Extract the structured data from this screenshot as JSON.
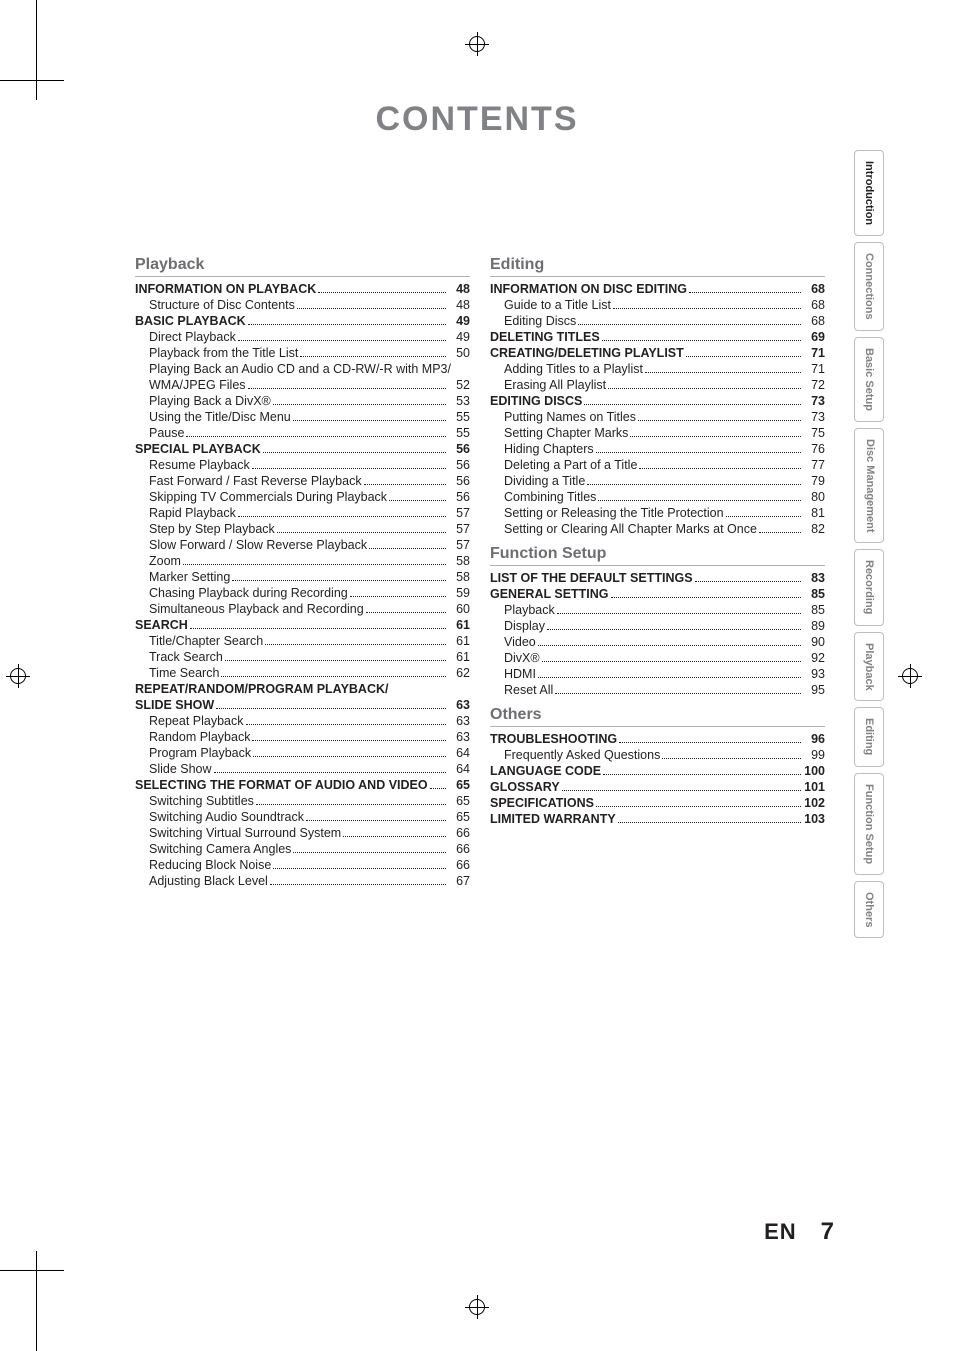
{
  "heading": "CONTENTS",
  "footer": {
    "lang": "EN",
    "page": "7"
  },
  "tabs": [
    {
      "label": "Introduction",
      "active": true
    },
    {
      "label": "Connections"
    },
    {
      "label": "Basic Setup"
    },
    {
      "label": "Disc\nManagement",
      "double": true
    },
    {
      "label": "Recording"
    },
    {
      "label": "Playback"
    },
    {
      "label": "Editing"
    },
    {
      "label": "Function Setup"
    },
    {
      "label": "Others"
    }
  ],
  "colLeft": [
    {
      "type": "section",
      "label": "Playback"
    },
    {
      "type": "h",
      "label": "INFORMATION ON PLAYBACK",
      "page": "48"
    },
    {
      "type": "s",
      "label": "Structure of Disc Contents",
      "page": "48"
    },
    {
      "type": "h",
      "label": "BASIC PLAYBACK",
      "page": "49"
    },
    {
      "type": "s",
      "label": "Direct Playback",
      "page": "49"
    },
    {
      "type": "s",
      "label": "Playback from the Title List",
      "page": "50"
    },
    {
      "type": "s",
      "label": "Playing Back an Audio CD and a CD-RW/-R with MP3/",
      "nopage": true
    },
    {
      "type": "s",
      "label": "WMA/JPEG Files",
      "page": "52"
    },
    {
      "type": "s",
      "label": "Playing Back a DivX®",
      "page": "53"
    },
    {
      "type": "s",
      "label": "Using the Title/Disc Menu",
      "page": "55"
    },
    {
      "type": "s",
      "label": "Pause",
      "page": "55"
    },
    {
      "type": "h",
      "label": "SPECIAL PLAYBACK",
      "page": "56"
    },
    {
      "type": "s",
      "label": "Resume Playback",
      "page": "56"
    },
    {
      "type": "s",
      "label": "Fast Forward / Fast Reverse Playback",
      "page": "56"
    },
    {
      "type": "s",
      "label": "Skipping TV Commercials During Playback",
      "page": "56"
    },
    {
      "type": "s",
      "label": "Rapid Playback",
      "page": "57"
    },
    {
      "type": "s",
      "label": "Step by Step Playback",
      "page": "57"
    },
    {
      "type": "s",
      "label": "Slow Forward / Slow Reverse Playback",
      "page": "57"
    },
    {
      "type": "s",
      "label": "Zoom",
      "page": "58"
    },
    {
      "type": "s",
      "label": "Marker Setting",
      "page": "58"
    },
    {
      "type": "s",
      "label": "Chasing Playback during Recording",
      "page": "59"
    },
    {
      "type": "s",
      "label": "Simultaneous Playback and Recording",
      "page": "60"
    },
    {
      "type": "h",
      "label": "SEARCH",
      "page": "61"
    },
    {
      "type": "s",
      "label": "Title/Chapter Search",
      "page": "61"
    },
    {
      "type": "s",
      "label": "Track Search",
      "page": "61"
    },
    {
      "type": "s",
      "label": "Time Search",
      "page": "62"
    },
    {
      "type": "h",
      "label": "REPEAT/RANDOM/PROGRAM PLAYBACK/",
      "nopage": true
    },
    {
      "type": "h",
      "label": "SLIDE SHOW",
      "page": "63"
    },
    {
      "type": "s",
      "label": "Repeat Playback",
      "page": "63"
    },
    {
      "type": "s",
      "label": "Random Playback",
      "page": "63"
    },
    {
      "type": "s",
      "label": "Program Playback",
      "page": "64"
    },
    {
      "type": "s",
      "label": "Slide Show",
      "page": "64"
    },
    {
      "type": "h",
      "label": "SELECTING THE FORMAT OF AUDIO AND VIDEO",
      "page": "65"
    },
    {
      "type": "s",
      "label": "Switching Subtitles",
      "page": "65"
    },
    {
      "type": "s",
      "label": "Switching Audio Soundtrack",
      "page": "65"
    },
    {
      "type": "s",
      "label": "Switching Virtual Surround System",
      "page": "66"
    },
    {
      "type": "s",
      "label": "Switching Camera Angles",
      "page": "66"
    },
    {
      "type": "s",
      "label": "Reducing Block Noise",
      "page": "66"
    },
    {
      "type": "s",
      "label": "Adjusting Black Level",
      "page": "67"
    }
  ],
  "colRight": [
    {
      "type": "section",
      "label": "Editing"
    },
    {
      "type": "h",
      "label": "INFORMATION ON DISC EDITING",
      "page": "68"
    },
    {
      "type": "s",
      "label": "Guide to a Title List",
      "page": "68"
    },
    {
      "type": "s",
      "label": "Editing Discs",
      "page": "68"
    },
    {
      "type": "h",
      "label": "DELETING TITLES",
      "page": "69"
    },
    {
      "type": "h",
      "label": "CREATING/DELETING PLAYLIST",
      "page": "71"
    },
    {
      "type": "s",
      "label": "Adding Titles to a Playlist",
      "page": "71"
    },
    {
      "type": "s",
      "label": "Erasing All Playlist",
      "page": "72"
    },
    {
      "type": "h",
      "label": "EDITING DISCS",
      "page": "73"
    },
    {
      "type": "s",
      "label": "Putting Names on Titles",
      "page": "73"
    },
    {
      "type": "s",
      "label": "Setting Chapter Marks",
      "page": "75"
    },
    {
      "type": "s",
      "label": "Hiding Chapters",
      "page": "76"
    },
    {
      "type": "s",
      "label": "Deleting a Part of a Title",
      "page": "77"
    },
    {
      "type": "s",
      "label": "Dividing a Title",
      "page": "79"
    },
    {
      "type": "s",
      "label": "Combining Titles",
      "page": "80"
    },
    {
      "type": "s",
      "label": "Setting or Releasing the Title Protection",
      "page": "81"
    },
    {
      "type": "s",
      "label": "Setting or Clearing All Chapter Marks at Once",
      "page": "82"
    },
    {
      "type": "section",
      "label": "Function Setup"
    },
    {
      "type": "h",
      "label": "LIST OF THE DEFAULT SETTINGS",
      "page": "83"
    },
    {
      "type": "h",
      "label": "GENERAL SETTING",
      "page": "85"
    },
    {
      "type": "s",
      "label": "Playback",
      "page": "85"
    },
    {
      "type": "s",
      "label": "Display",
      "page": "89"
    },
    {
      "type": "s",
      "label": "Video",
      "page": "90"
    },
    {
      "type": "s",
      "label": "DivX®",
      "page": "92"
    },
    {
      "type": "s",
      "label": "HDMI",
      "page": "93"
    },
    {
      "type": "s",
      "label": "Reset All",
      "page": "95"
    },
    {
      "type": "section",
      "label": "Others"
    },
    {
      "type": "h",
      "label": "TROUBLESHOOTING",
      "page": "96"
    },
    {
      "type": "s",
      "label": "Frequently Asked Questions",
      "page": "99"
    },
    {
      "type": "h",
      "label": "LANGUAGE CODE",
      "page": "100"
    },
    {
      "type": "h",
      "label": "GLOSSARY",
      "page": "101"
    },
    {
      "type": "h",
      "label": "SPECIFICATIONS",
      "page": "102"
    },
    {
      "type": "h",
      "label": "LIMITED WARRANTY",
      "page": "103"
    }
  ]
}
